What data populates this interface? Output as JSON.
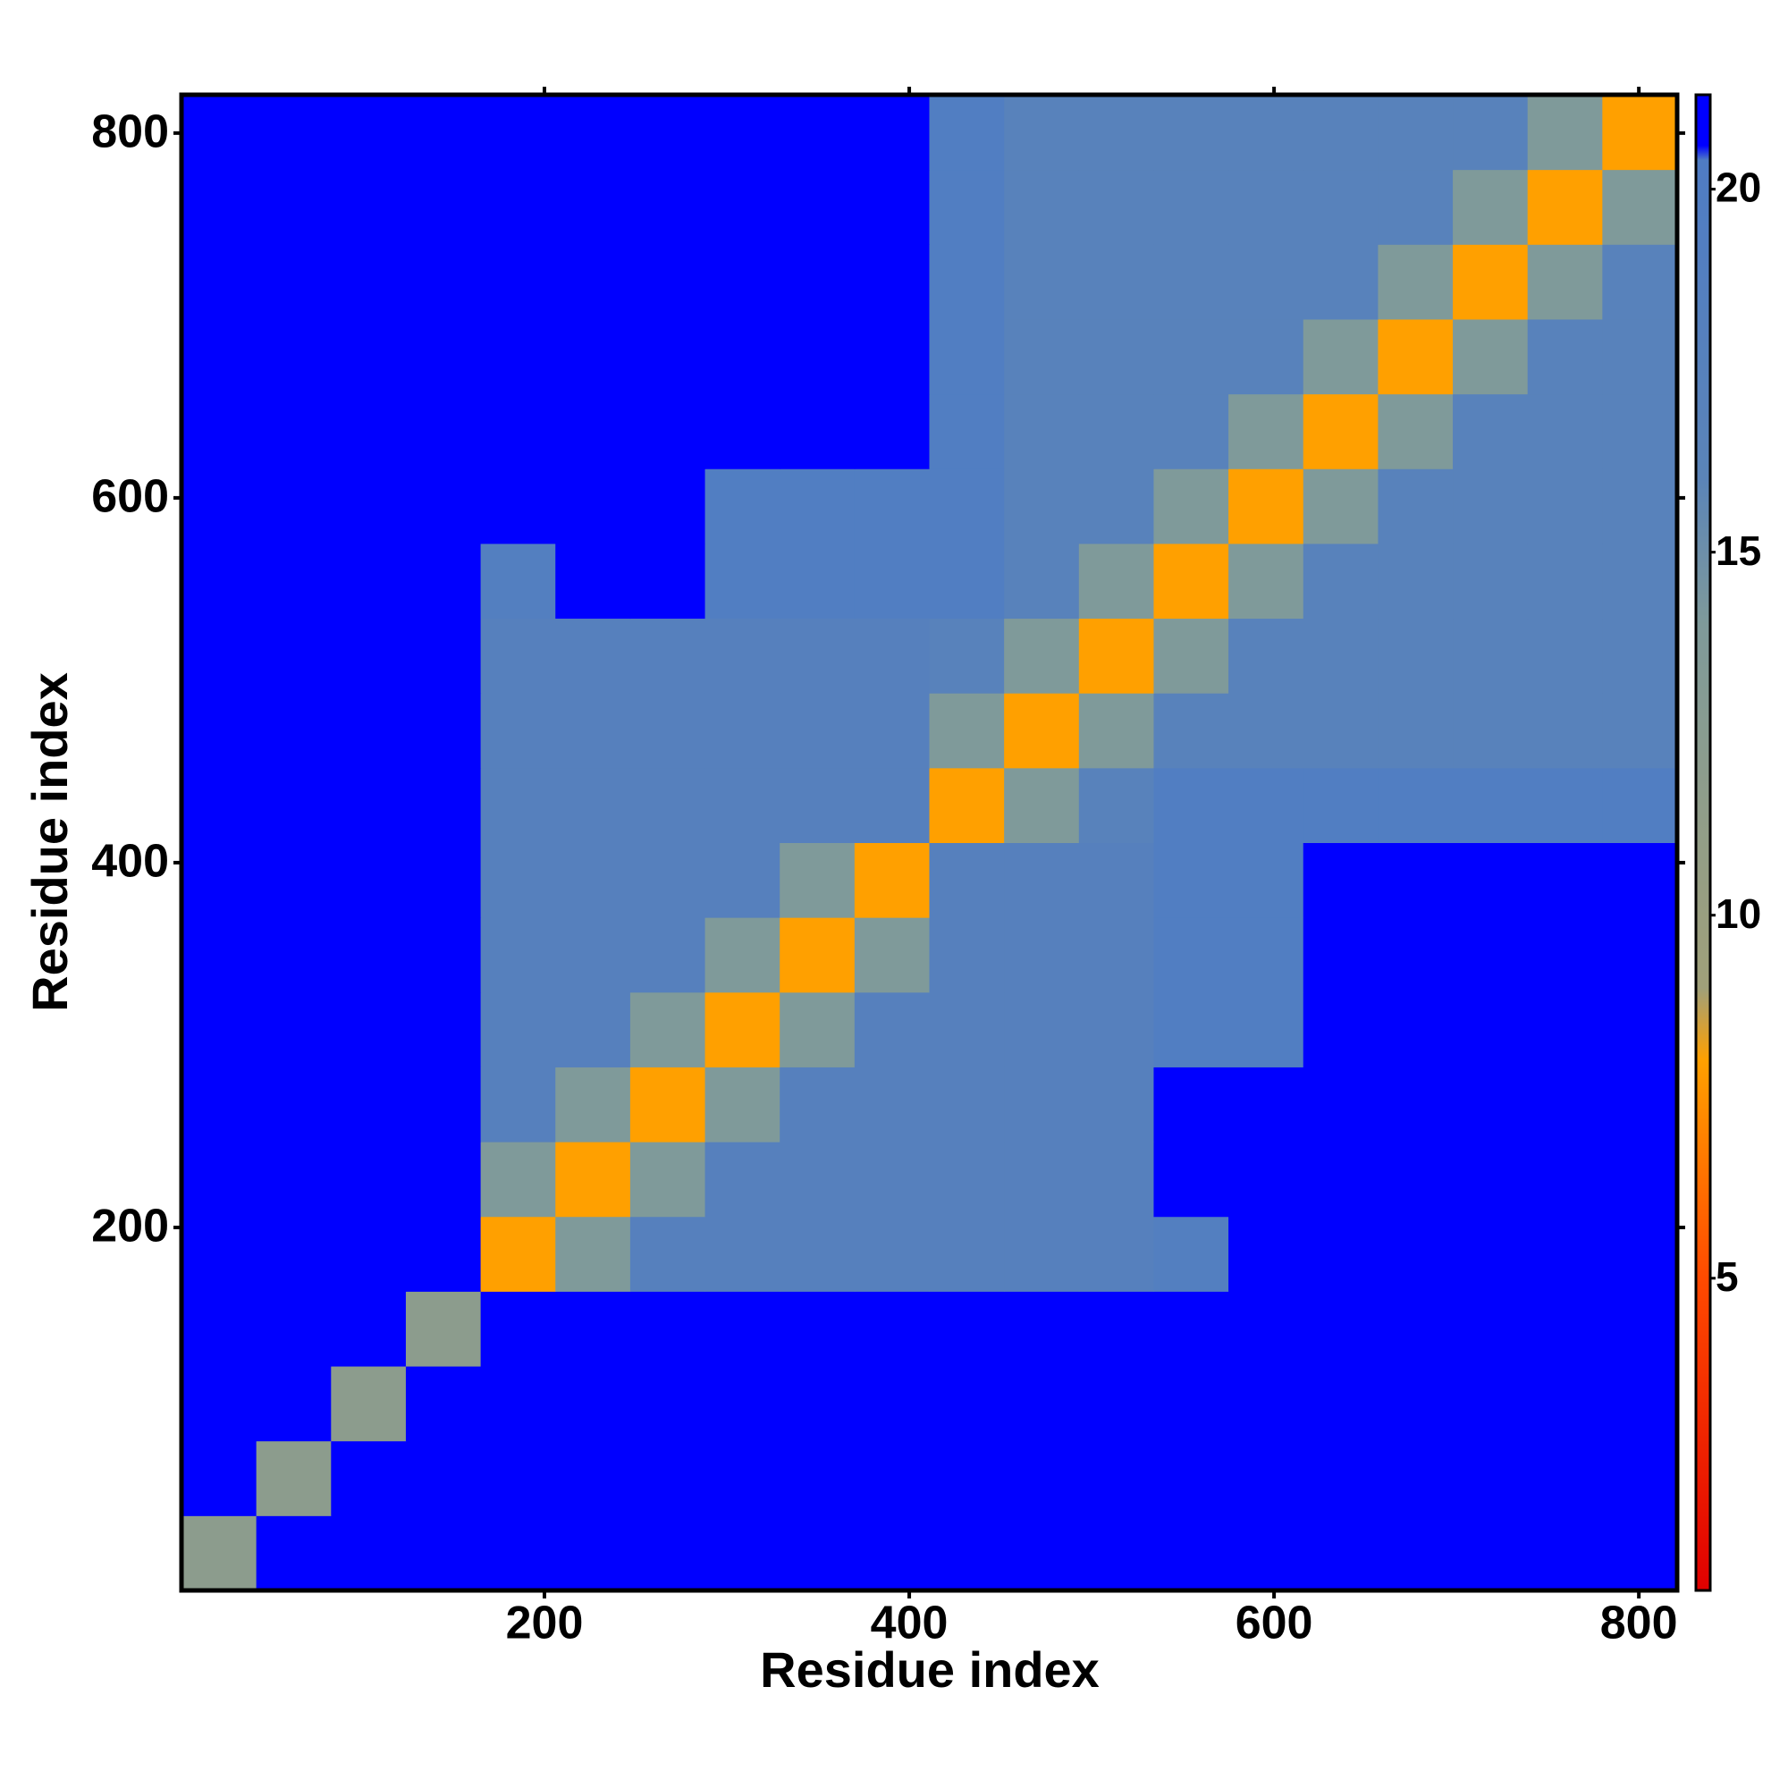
{
  "chart_data": {
    "type": "heatmap",
    "xlabel": "Residue index",
    "ylabel": "Residue index",
    "xlim": [
      1,
      821
    ],
    "ylim": [
      1,
      821
    ],
    "xticks": [
      200,
      400,
      600,
      800
    ],
    "yticks": [
      200,
      400,
      600,
      800
    ],
    "bins": [
      1,
      42,
      83,
      124,
      165,
      206,
      247,
      288,
      329,
      370,
      411,
      452,
      493,
      534,
      575,
      616,
      657,
      698,
      739,
      780,
      821
    ],
    "values": [
      [
        12,
        21,
        21,
        21,
        21,
        21,
        21,
        21,
        21,
        21,
        21,
        21,
        21,
        21,
        21,
        21,
        21,
        21,
        21,
        21
      ],
      [
        21,
        12,
        21,
        21,
        21,
        21,
        21,
        21,
        21,
        21,
        21,
        21,
        21,
        21,
        21,
        21,
        21,
        21,
        21,
        21
      ],
      [
        21,
        21,
        12,
        21,
        21,
        21,
        21,
        21,
        21,
        21,
        21,
        21,
        21,
        21,
        21,
        21,
        21,
        21,
        21,
        21
      ],
      [
        21,
        21,
        21,
        12,
        21,
        21,
        21,
        21,
        21,
        21,
        21,
        21,
        21,
        21,
        21,
        21,
        21,
        21,
        21,
        21
      ],
      [
        21,
        21,
        21,
        21,
        8,
        14,
        18,
        18,
        18,
        18,
        18,
        18,
        18,
        19,
        21,
        21,
        21,
        21,
        21,
        21
      ],
      [
        21,
        21,
        21,
        21,
        14,
        8,
        14,
        18,
        18,
        18,
        18,
        18,
        18,
        21,
        21,
        21,
        21,
        21,
        21,
        21
      ],
      [
        21,
        21,
        21,
        21,
        18,
        14,
        8,
        14,
        18,
        18,
        18,
        18,
        18,
        21,
        21,
        21,
        21,
        21,
        21,
        21
      ],
      [
        21,
        21,
        21,
        21,
        18,
        18,
        14,
        8,
        14,
        18,
        18,
        18,
        18,
        19.5,
        19.5,
        21,
        21,
        21,
        21,
        21
      ],
      [
        21,
        21,
        21,
        21,
        18,
        18,
        18,
        14,
        8,
        14,
        18,
        18,
        18,
        19.5,
        19.5,
        21,
        21,
        21,
        21,
        21
      ],
      [
        21,
        21,
        21,
        21,
        18,
        18,
        18,
        18,
        14,
        8,
        18,
        18,
        18,
        19.5,
        19.5,
        21,
        21,
        21,
        21,
        21
      ],
      [
        21,
        21,
        21,
        21,
        18,
        18,
        18,
        18,
        18,
        18,
        8,
        14,
        17,
        19.5,
        19.5,
        19.5,
        19.5,
        19.5,
        19.5,
        19.5
      ],
      [
        21,
        21,
        21,
        21,
        18,
        18,
        18,
        18,
        18,
        18,
        14,
        8,
        14,
        17,
        17,
        17,
        17,
        17,
        17,
        17
      ],
      [
        21,
        21,
        21,
        21,
        18,
        18,
        18,
        18,
        18,
        18,
        17,
        14,
        8,
        14,
        17,
        17,
        17,
        17,
        17,
        17
      ],
      [
        21,
        21,
        21,
        21,
        19,
        21,
        21,
        19.5,
        19.5,
        19.5,
        19.5,
        17,
        14,
        8,
        14,
        17,
        17,
        17,
        17,
        17
      ],
      [
        21,
        21,
        21,
        21,
        21,
        21,
        21,
        19.5,
        19.5,
        19.5,
        19.5,
        17,
        17,
        14,
        8,
        14,
        17,
        17,
        17,
        17
      ],
      [
        21,
        21,
        21,
        21,
        21,
        21,
        21,
        21,
        21,
        21,
        19.5,
        17,
        17,
        17,
        14,
        8,
        14,
        17,
        17,
        17
      ],
      [
        21,
        21,
        21,
        21,
        21,
        21,
        21,
        21,
        21,
        21,
        19.5,
        17,
        17,
        17,
        17,
        14,
        8,
        14,
        17,
        17
      ],
      [
        21,
        21,
        21,
        21,
        21,
        21,
        21,
        21,
        21,
        21,
        19.5,
        17,
        17,
        17,
        17,
        17,
        14,
        8,
        14,
        17
      ],
      [
        21,
        21,
        21,
        21,
        21,
        21,
        21,
        21,
        21,
        21,
        19.5,
        17,
        17,
        17,
        17,
        17,
        17,
        14,
        8,
        14
      ],
      [
        21,
        21,
        21,
        21,
        21,
        21,
        21,
        21,
        21,
        21,
        19.5,
        17,
        17,
        17,
        17,
        17,
        17,
        17,
        14,
        8
      ]
    ],
    "zlim": [
      0.7,
      21.3
    ],
    "zticks": [
      5,
      10,
      15,
      20
    ],
    "colorscale": [
      [
        0.7,
        "#e00000"
      ],
      [
        5,
        "#ff4a00"
      ],
      [
        8,
        "#ffa000"
      ],
      [
        9,
        "#a0a07a"
      ],
      [
        14,
        "#7f9a9a"
      ],
      [
        16,
        "#5b84b8"
      ],
      [
        20.4,
        "#4f7cc4"
      ],
      [
        20.6,
        "#0000ff"
      ],
      [
        21.3,
        "#0000ff"
      ]
    ]
  }
}
